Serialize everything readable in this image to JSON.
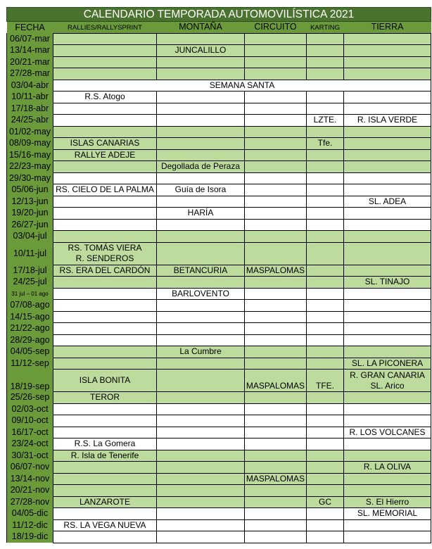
{
  "title": "CALENDARIO TEMPORADA AUTOMOVILÍSTICA 2021",
  "headers": [
    "FECHA",
    "RALLIES/RALLYSPRINT",
    "MONTAÑA",
    "CIRCUITO",
    "KARTING",
    "TIERRA"
  ],
  "colors": {
    "title_bg": "#4b7330",
    "date_col": "#6b9a3a",
    "highlight_row": "#bcdb9c",
    "plain_row": "#ffffff"
  },
  "rows": [
    {
      "fecha": "06/07-mar",
      "shade": "green",
      "cells": [
        "",
        "",
        "",
        "",
        ""
      ]
    },
    {
      "fecha": "13/14-mar",
      "shade": "green",
      "cells": [
        "",
        "JUNCALILLO",
        "",
        "",
        ""
      ]
    },
    {
      "fecha": "20/21-mar",
      "shade": "green",
      "cells": [
        "",
        "",
        "",
        "",
        ""
      ]
    },
    {
      "fecha": "27/28-mar",
      "shade": "green",
      "cells": [
        "",
        "",
        "",
        "",
        ""
      ]
    },
    {
      "fecha": "03/04-abr",
      "shade": "white",
      "span": "SEMANA SANTA"
    },
    {
      "fecha": "10/11-abr",
      "shade": "white",
      "cells": [
        "R.S. Atogo",
        "",
        "",
        "",
        ""
      ]
    },
    {
      "fecha": "17/18-abr",
      "shade": "white",
      "cells": [
        "",
        "",
        "",
        "",
        ""
      ]
    },
    {
      "fecha": "24/25-abr",
      "shade": "white",
      "cells": [
        "",
        "",
        "",
        "LZTE.",
        "R. ISLA VERDE"
      ]
    },
    {
      "fecha": "01/02-may",
      "shade": "green",
      "cells": [
        "",
        "",
        "",
        "",
        ""
      ]
    },
    {
      "fecha": "08/09-may",
      "shade": "green",
      "cells": [
        "ISLAS CANARIAS",
        "",
        "",
        "Tfe.",
        ""
      ]
    },
    {
      "fecha": "15/16-may",
      "shade": "green",
      "cells": [
        "RALLYE ADEJE",
        "",
        "",
        "",
        ""
      ]
    },
    {
      "fecha": "22/23-may",
      "shade": "green",
      "cells": [
        "",
        "Degollada de Peraza",
        "",
        "",
        ""
      ]
    },
    {
      "fecha": "29/30-may",
      "shade": "white",
      "cells": [
        "",
        "",
        "",
        "",
        ""
      ]
    },
    {
      "fecha": "05/06-jun",
      "shade": "white",
      "cells": [
        "RS. CIELO DE LA PALMA",
        "Guía de Isora",
        "",
        "",
        ""
      ]
    },
    {
      "fecha": "12/13-jun",
      "shade": "white",
      "cells": [
        "",
        "",
        "",
        "",
        "SL. ADEA"
      ]
    },
    {
      "fecha": "19/20-jun",
      "shade": "white",
      "cells": [
        "",
        "HARÍA",
        "",
        "",
        ""
      ]
    },
    {
      "fecha": "26/27-jun",
      "shade": "white",
      "cells": [
        "",
        "",
        "",
        "",
        ""
      ]
    },
    {
      "fecha": "03/04-jul",
      "shade": "green",
      "cells": [
        "",
        "",
        "",
        "",
        ""
      ]
    },
    {
      "fecha": "10/11-jul",
      "shade": "green",
      "double": true,
      "cells": [
        "RS. TOMÁS VIERA\nR. SENDEROS",
        "",
        "",
        "",
        ""
      ]
    },
    {
      "fecha": "17/18-jul",
      "shade": "green",
      "cells": [
        "RS. ERA DEL CARDÓN",
        "BETANCURIA",
        "MASPALOMAS",
        "",
        ""
      ]
    },
    {
      "fecha": "24/25-jul",
      "shade": "green",
      "cells": [
        "",
        "",
        "",
        "",
        "SL. TINAJO"
      ]
    },
    {
      "fecha": "31 jul – 01 ago",
      "shade": "white",
      "tiny": true,
      "cells": [
        "",
        "BARLOVENTO",
        "",
        "",
        ""
      ]
    },
    {
      "fecha": "07/08-ago",
      "shade": "white",
      "cells": [
        "",
        "",
        "",
        "",
        ""
      ]
    },
    {
      "fecha": "14/15-ago",
      "shade": "white",
      "cells": [
        "",
        "",
        "",
        "",
        ""
      ]
    },
    {
      "fecha": "21/22-ago",
      "shade": "white",
      "cells": [
        "",
        "",
        "",
        "",
        ""
      ]
    },
    {
      "fecha": "28/29-ago",
      "shade": "white",
      "cells": [
        "",
        "",
        "",
        "",
        ""
      ]
    },
    {
      "fecha": "04/05-sep",
      "shade": "green",
      "cells": [
        "",
        "La Cumbre",
        "",
        "",
        ""
      ]
    },
    {
      "fecha": "11/12-sep",
      "shade": "green",
      "cells": [
        "",
        "",
        "",
        "",
        "SL. LA PICONERA"
      ]
    },
    {
      "fecha": "18/19-sep",
      "shade": "green",
      "double": true,
      "bottom": true,
      "cells": [
        "ISLA BONITA",
        "",
        "MASPALOMAS",
        "TFE.",
        "R. GRAN CANARIA\nSL. Arico"
      ]
    },
    {
      "fecha": "25/26-sep",
      "shade": "green",
      "cells": [
        "TEROR",
        "",
        "",
        "",
        ""
      ]
    },
    {
      "fecha": "02/03-oct",
      "shade": "white",
      "cells": [
        "",
        "",
        "",
        "",
        ""
      ]
    },
    {
      "fecha": "09/10-oct",
      "shade": "white",
      "cells": [
        "",
        "",
        "",
        "",
        ""
      ]
    },
    {
      "fecha": "16/17-oct",
      "shade": "white",
      "cells": [
        "",
        "",
        "",
        "",
        "R. LOS VOLCANES"
      ]
    },
    {
      "fecha": "23/24-oct",
      "shade": "white",
      "cells": [
        "R.S. La Gomera",
        "",
        "",
        "",
        ""
      ]
    },
    {
      "fecha": "30/31-oct",
      "shade": "green",
      "cells": [
        "R. Isla de Tenerife",
        "",
        "",
        "",
        ""
      ]
    },
    {
      "fecha": "06/07-nov",
      "shade": "green",
      "cells": [
        "",
        "",
        "",
        "",
        "R. LA OLIVA"
      ]
    },
    {
      "fecha": "13/14-nov",
      "shade": "green",
      "cells": [
        "",
        "",
        "MASPALOMAS",
        "",
        ""
      ]
    },
    {
      "fecha": "20/21-nov",
      "shade": "green",
      "cells": [
        "",
        "",
        "",
        "",
        ""
      ]
    },
    {
      "fecha": "27/28-nov",
      "shade": "green",
      "cells": [
        "LANZAROTE",
        "",
        "",
        "GC",
        "S. El Hierro"
      ]
    },
    {
      "fecha": "04/05-dic",
      "shade": "white",
      "cells": [
        "",
        "",
        "",
        "",
        "SL. MEMORIAL"
      ]
    },
    {
      "fecha": "11/12-dic",
      "shade": "white",
      "cells": [
        "RS. LA VEGA NUEVA",
        "",
        "",
        "",
        ""
      ]
    },
    {
      "fecha": "18/19-dic",
      "shade": "white",
      "cells": [
        "",
        "",
        "",
        "",
        ""
      ]
    }
  ]
}
